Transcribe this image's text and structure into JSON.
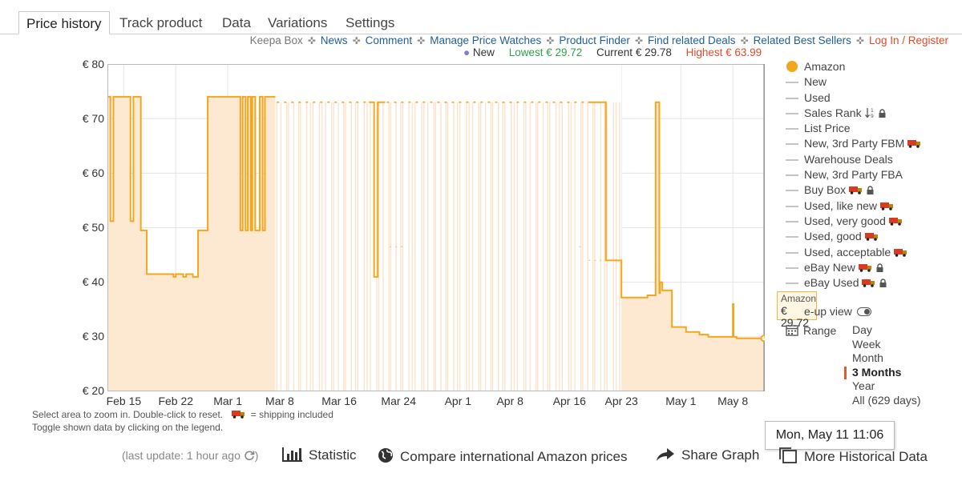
{
  "tabs": [
    {
      "label": "Price history",
      "active": true
    },
    {
      "label": "Track product"
    },
    {
      "label": "Data"
    },
    {
      "label": "Variations"
    },
    {
      "label": "Settings"
    }
  ],
  "links": {
    "keepa_box": "Keepa Box",
    "news": "News",
    "comment": "Comment",
    "manage_watches": "Manage Price Watches",
    "product_finder": "Product Finder",
    "find_deals": "Find related Deals",
    "best_sellers": "Related Best Sellers",
    "login": "Log In / Register"
  },
  "summary": {
    "dot": "●",
    "new_label": "New",
    "lowest": "Lowest € 29.72",
    "current": "Current € 29.78",
    "highest": "Highest € 63.99"
  },
  "help": {
    "line1_a": "Select area to zoom in. Double-click to reset.",
    "line1_b": "= shipping included",
    "line2": "Toggle shown data by clicking on the legend."
  },
  "legend": [
    {
      "label": "Amazon",
      "kind": "dot"
    },
    {
      "label": "New"
    },
    {
      "label": "Used"
    },
    {
      "label": "Sales Rank",
      "sort_icon": true,
      "lock": true
    },
    {
      "label": "List Price"
    },
    {
      "label": "New, 3rd Party FBM",
      "truck": true
    },
    {
      "label": "Warehouse Deals"
    },
    {
      "label": "New, 3rd Party FBA"
    },
    {
      "label": "Buy Box",
      "truck": true,
      "lock": true
    },
    {
      "label": "Used, like new",
      "truck": true
    },
    {
      "label": "Used, very good",
      "truck": true
    },
    {
      "label": "Used, good",
      "truck": true
    },
    {
      "label": "Used, acceptable",
      "truck": true
    },
    {
      "label": "eBay New",
      "truck": true,
      "lock": true
    },
    {
      "label": "eBay Used",
      "truck": true,
      "lock": true
    }
  ],
  "tooltip": {
    "series": "Amazon",
    "price": "€ 29.72"
  },
  "closeup_label": "e-up view",
  "range": {
    "label": "Range",
    "options": [
      "Day",
      "Week",
      "Month",
      "3 Months",
      "Year",
      "All (629 days)"
    ],
    "selected": "3 Months"
  },
  "date_tooltip": "Mon, May 11 11:06",
  "bottom": {
    "last_update": "(last update: 1 hour ago",
    "statistic": "Statistic",
    "compare": "Compare international Amazon prices",
    "share": "Share Graph",
    "more_history": "More Historical Data"
  },
  "colors": {
    "amazon": "#f3a71e",
    "amazon_fill": "#fde8d2",
    "new_dot": "#7d7fcf",
    "lowest": "#2ca24a",
    "highest": "#e24b2c",
    "link": "#1f5e96"
  },
  "chart_data": {
    "type": "line",
    "y_tick_labels": [
      "€ 80",
      "€ 70",
      "€ 60",
      "€ 50",
      "€ 40",
      "€ 30",
      "€ 20"
    ],
    "ylim": [
      20,
      80
    ],
    "x_tick_labels": [
      "Feb 15",
      "Feb 22",
      "Mar 1",
      "Mar 8",
      "Mar 16",
      "Mar 24",
      "Apr 1",
      "Apr 8",
      "Apr 16",
      "Apr 23",
      "May 1",
      "May 8"
    ],
    "x_tick_days": [
      0,
      7,
      14,
      21,
      29,
      37,
      45,
      52,
      60,
      67,
      75,
      82
    ],
    "x_range_days": [
      -2.2,
      86.3
    ],
    "grid": true,
    "series": [
      {
        "name": "Amazon",
        "step": true,
        "points": [
          [
            -2.2,
            74
          ],
          [
            -1.8,
            51.2
          ],
          [
            -1.4,
            74
          ],
          [
            0.7,
            74
          ],
          [
            0.9,
            51.2
          ],
          [
            1.3,
            74
          ],
          [
            2.2,
            74
          ],
          [
            2.3,
            49.5
          ],
          [
            3.0,
            49.5
          ],
          [
            3.1,
            41.5
          ],
          [
            6.5,
            41.5
          ],
          [
            6.7,
            41
          ],
          [
            7.0,
            41.5
          ],
          [
            7.8,
            41.5
          ],
          [
            8.0,
            41
          ],
          [
            8.4,
            41.5
          ],
          [
            9.1,
            41.5
          ],
          [
            9.3,
            41
          ],
          [
            9.7,
            41
          ],
          [
            10.0,
            49.5
          ],
          [
            11.2,
            49.5
          ],
          [
            11.3,
            74
          ],
          [
            15.6,
            74
          ],
          [
            15.7,
            49.5
          ],
          [
            16.0,
            74
          ],
          [
            16.4,
            49.5
          ],
          [
            16.7,
            74
          ],
          [
            17.1,
            49.5
          ],
          [
            17.3,
            74
          ],
          [
            17.7,
            49.5
          ],
          [
            18.2,
            49.5
          ],
          [
            18.3,
            74
          ],
          [
            18.7,
            49.5
          ],
          [
            19.0,
            74
          ],
          [
            20.4,
            74
          ],
          [
            33.0,
            73
          ],
          [
            33.6,
            73
          ],
          [
            33.7,
            41
          ],
          [
            34.0,
            41
          ],
          [
            34.2,
            73
          ],
          [
            35.2,
            73
          ],
          [
            62.5,
            73
          ],
          [
            63.0,
            73
          ],
          [
            64.9,
            44
          ],
          [
            66.6,
            44
          ],
          [
            67.0,
            37.2
          ],
          [
            70.3,
            37.2
          ],
          [
            70.5,
            37.6
          ],
          [
            71.5,
            37.6
          ],
          [
            71.6,
            73
          ],
          [
            72.1,
            38
          ],
          [
            72.2,
            40
          ],
          [
            72.5,
            38.5
          ],
          [
            73.5,
            38.5
          ],
          [
            73.8,
            31.8
          ],
          [
            75.5,
            31.8
          ],
          [
            75.7,
            30.9
          ],
          [
            77.3,
            30.9
          ],
          [
            77.5,
            30.4
          ],
          [
            78.5,
            30.4
          ],
          [
            78.7,
            30
          ],
          [
            81.9,
            30
          ],
          [
            82.0,
            36
          ],
          [
            82.1,
            30
          ],
          [
            82.5,
            29.72
          ],
          [
            86.3,
            29.72
          ]
        ]
      }
    ],
    "highlighted_point": {
      "x_day": 86.3,
      "y": 29.72
    }
  }
}
